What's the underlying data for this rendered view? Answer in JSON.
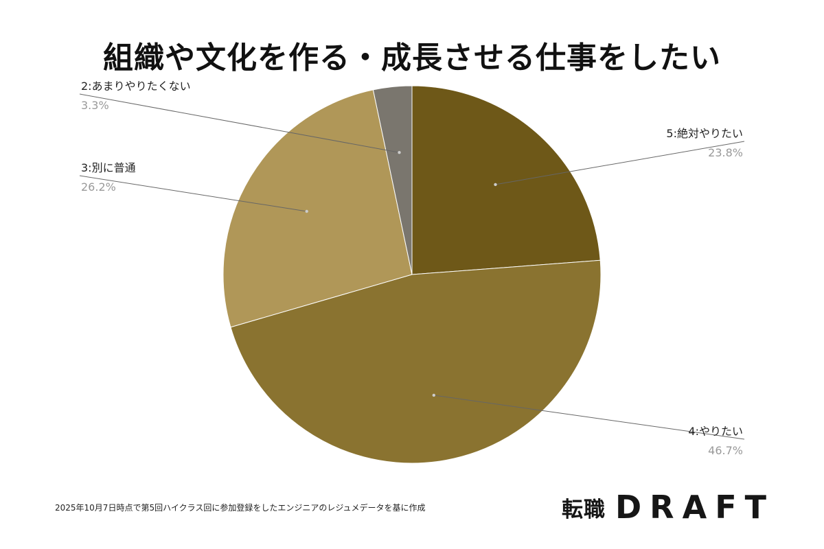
{
  "title": "組織や文化を作る・成長させる仕事をしたい",
  "chart_data": {
    "type": "pie",
    "title": "組織や文化を作る・成長させる仕事をしたい",
    "start_angle_deg": 0,
    "direction": "clockwise",
    "slices": [
      {
        "label": "5:絶対やりたい",
        "value": 23.8,
        "percent_label": "23.8%",
        "color": "#6e5818",
        "label_side": "right"
      },
      {
        "label": "4:やりたい",
        "value": 46.7,
        "percent_label": "46.7%",
        "color": "#8a7330",
        "label_side": "right"
      },
      {
        "label": "3:別に普通",
        "value": 26.2,
        "percent_label": "26.2%",
        "color": "#b09758",
        "label_side": "left"
      },
      {
        "label": "2:あまりやりたくない",
        "value": 3.3,
        "percent_label": "3.3%",
        "color": "#7a766e",
        "label_side": "left"
      }
    ],
    "legend": "none"
  },
  "footnote": "2025年10月7日時点で第5回ハイクラス回に参加登録をしたエンジニアのレジュメデータを基に作成",
  "logo": {
    "jp": "転職",
    "en": "DRAFT"
  },
  "colors": {
    "leader_line": "#666666",
    "category_text": "#222222",
    "percent_text": "#999999",
    "slice_border": "#ffffff"
  }
}
